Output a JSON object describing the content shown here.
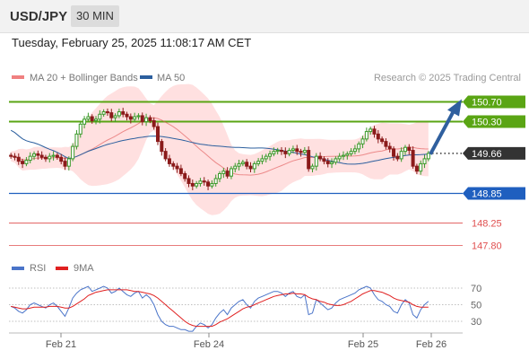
{
  "header": {
    "symbol": "USD/JPY",
    "timeframe": "30 MIN"
  },
  "datetime": "Tuesday, February 25, 2025 11:08:17 AM CET",
  "legend": [
    {
      "label": "MA 20 + Bollinger Bands",
      "color": "#f08080"
    },
    {
      "label": "MA 50",
      "color": "#2c5f9e"
    }
  ],
  "copyright": "Research © 2025 Trading Central",
  "colors": {
    "up": "#3a9a2a",
    "down": "#8b1a1a",
    "resistance": "#5aa514",
    "support": "#1f5fbf",
    "target": "#e05050",
    "arrow": "#2f5f9e",
    "band": "#ffd6d6"
  },
  "chart_data": {
    "type": "candlestick",
    "ylim": [
      147.5,
      151.0
    ],
    "current_price": 149.66,
    "levels": [
      {
        "value": 150.7,
        "label": "150.70",
        "kind": "resistance"
      },
      {
        "value": 150.3,
        "label": "150.30",
        "kind": "resistance"
      },
      {
        "value": 149.66,
        "label": "149.66",
        "kind": "current"
      },
      {
        "value": 148.85,
        "label": "148.85",
        "kind": "support"
      },
      {
        "value": 148.25,
        "label": "148.25",
        "kind": "target"
      },
      {
        "value": 147.8,
        "label": "147.80",
        "kind": "target"
      }
    ],
    "x_ticks": [
      "Feb 21",
      "Feb 24",
      "Feb 25",
      "Feb 26"
    ],
    "closes": [
      149.6,
      149.58,
      149.5,
      149.45,
      149.52,
      149.6,
      149.65,
      149.62,
      149.58,
      149.55,
      149.6,
      149.62,
      149.58,
      149.5,
      149.4,
      149.55,
      149.8,
      150.05,
      150.25,
      150.35,
      150.4,
      150.32,
      150.35,
      150.45,
      150.5,
      150.48,
      150.38,
      150.42,
      150.5,
      150.45,
      150.4,
      150.35,
      150.4,
      150.42,
      150.3,
      150.38,
      150.32,
      150.2,
      149.9,
      149.7,
      149.55,
      149.45,
      149.4,
      149.35,
      149.25,
      149.15,
      149.05,
      149.0,
      149.05,
      149.1,
      149.08,
      149.0,
      149.05,
      149.15,
      149.25,
      149.3,
      149.2,
      149.35,
      149.4,
      149.45,
      149.48,
      149.4,
      149.35,
      149.45,
      149.5,
      149.55,
      149.6,
      149.65,
      149.7,
      149.72,
      149.7,
      149.65,
      149.72,
      149.75,
      149.7,
      149.68,
      149.72,
      149.35,
      149.4,
      149.6,
      149.55,
      149.5,
      149.45,
      149.48,
      149.55,
      149.6,
      149.62,
      149.65,
      149.7,
      149.75,
      149.85,
      149.95,
      150.1,
      150.15,
      150.05,
      149.95,
      149.9,
      149.8,
      149.75,
      149.6,
      149.55,
      149.7,
      149.78,
      149.72,
      149.4,
      149.3,
      149.45,
      149.55,
      149.66
    ],
    "rsi": {
      "levels": [
        70,
        50,
        30
      ],
      "series": [
        {
          "name": "RSI",
          "color": "#4a74c9",
          "values": [
            48,
            46,
            42,
            40,
            44,
            50,
            52,
            50,
            48,
            46,
            50,
            52,
            48,
            42,
            36,
            46,
            58,
            64,
            68,
            70,
            72,
            66,
            68,
            70,
            72,
            70,
            64,
            66,
            70,
            66,
            62,
            60,
            64,
            66,
            58,
            62,
            58,
            50,
            38,
            30,
            26,
            24,
            24,
            22,
            20,
            20,
            18,
            18,
            24,
            28,
            26,
            22,
            26,
            34,
            40,
            44,
            38,
            46,
            50,
            54,
            56,
            50,
            46,
            54,
            58,
            60,
            62,
            64,
            66,
            66,
            64,
            60,
            64,
            66,
            60,
            58,
            62,
            38,
            40,
            56,
            52,
            48,
            44,
            46,
            52,
            56,
            58,
            60,
            62,
            64,
            68,
            70,
            72,
            70,
            62,
            56,
            54,
            50,
            48,
            42,
            40,
            50,
            56,
            52,
            38,
            34,
            44,
            50,
            54
          ]
        },
        {
          "name": "9MA",
          "color": "#e02020",
          "values": [
            48,
            47,
            46,
            45,
            45,
            46,
            47,
            47,
            47,
            47,
            48,
            48,
            48,
            47,
            46,
            46,
            48,
            51,
            54,
            57,
            61,
            63,
            65,
            66,
            67,
            68,
            68,
            68,
            68,
            68,
            68,
            67,
            66,
            66,
            65,
            64,
            63,
            61,
            58,
            54,
            50,
            46,
            42,
            38,
            34,
            30,
            27,
            25,
            24,
            24,
            24,
            24,
            24,
            26,
            29,
            31,
            33,
            36,
            39,
            42,
            45,
            47,
            48,
            50,
            52,
            54,
            56,
            58,
            60,
            61,
            62,
            63,
            63,
            64,
            63,
            63,
            62,
            59,
            57,
            56,
            54,
            53,
            51,
            50,
            49,
            49,
            50,
            52,
            54,
            57,
            60,
            63,
            65,
            67,
            67,
            66,
            65,
            63,
            61,
            58,
            56,
            55,
            54,
            53,
            50,
            48,
            47,
            47,
            47
          ]
        }
      ]
    }
  }
}
